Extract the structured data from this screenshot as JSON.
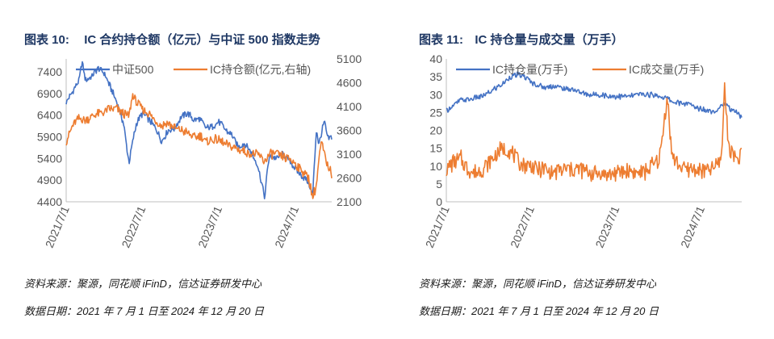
{
  "charts": [
    {
      "figure_label": "图表 10:",
      "figure_title": "IC 合约持仓额（亿元）与中证 500 指数走势",
      "source": "资料来源：聚源，同花顺 iFinD，信达证券研发中心",
      "date_note": "数据日期：2021 年 7 月 1 日至 2024 年 12 月 20 日",
      "colors": {
        "blue": "#4472c4",
        "orange": "#ed7d31"
      }
    },
    {
      "figure_label": "图表 11:",
      "figure_title": "IC 持仓量与成交量（万手）",
      "source": "资料来源：聚源，同花顺 iFinD，信达证券研发中心",
      "date_note": "数据日期：2021 年 7 月 1 日至 2024 年 12 月 20 日",
      "colors": {
        "blue": "#4472c4",
        "orange": "#ed7d31"
      }
    }
  ],
  "chart_data": [
    {
      "type": "line",
      "x_tick_labels": [
        "2021/7/1",
        "2022/7/1",
        "2023/7/1",
        "2024/7/1"
      ],
      "x_range": [
        "2021-07-01",
        "2024-12-20"
      ],
      "y_left": {
        "ticks": [
          "7400",
          "6900",
          "6400",
          "5900",
          "5400",
          "4900",
          "4400"
        ],
        "range": [
          4400,
          7700
        ]
      },
      "y_right": {
        "ticks": [
          "5100",
          "4600",
          "4100",
          "3600",
          "3100",
          "2600",
          "2100"
        ],
        "range": [
          2100,
          5100
        ]
      },
      "legend": [
        "中证500",
        "IC持仓额(亿元,右轴)"
      ],
      "legend_position": "top",
      "series": [
        {
          "name": "中证500",
          "axis": "left",
          "color": "#4472c4",
          "dates": [
            "2021-07-01",
            "2021-08-01",
            "2021-09-01",
            "2021-09-15",
            "2021-10-01",
            "2021-11-01",
            "2021-12-01",
            "2022-01-01",
            "2022-02-01",
            "2022-03-01",
            "2022-04-01",
            "2022-04-27",
            "2022-05-15",
            "2022-06-01",
            "2022-07-01",
            "2022-08-01",
            "2022-09-01",
            "2022-10-01",
            "2022-11-01",
            "2022-12-01",
            "2023-01-01",
            "2023-02-01",
            "2023-03-01",
            "2023-04-01",
            "2023-05-01",
            "2023-06-01",
            "2023-07-01",
            "2023-08-01",
            "2023-09-01",
            "2023-10-01",
            "2023-11-01",
            "2023-12-01",
            "2024-01-01",
            "2024-02-05",
            "2024-02-20",
            "2024-03-01",
            "2024-04-01",
            "2024-05-01",
            "2024-06-01",
            "2024-07-01",
            "2024-08-01",
            "2024-09-01",
            "2024-09-20",
            "2024-10-08",
            "2024-10-20",
            "2024-11-01",
            "2024-11-15",
            "2024-12-01",
            "2024-12-20"
          ],
          "values": [
            6700,
            6950,
            7200,
            7650,
            7200,
            7300,
            7500,
            7350,
            7000,
            6700,
            6200,
            5300,
            5800,
            6200,
            6450,
            6300,
            6100,
            5800,
            6050,
            6100,
            6350,
            6450,
            6300,
            6300,
            6100,
            6150,
            6250,
            6050,
            5950,
            5650,
            5750,
            5550,
            5250,
            4500,
            5300,
            5450,
            5400,
            5500,
            5350,
            5150,
            5000,
            4850,
            4550,
            6100,
            5700,
            6000,
            6250,
            5850,
            5900
          ]
        },
        {
          "name": "IC持仓额(亿元,右轴)",
          "axis": "right",
          "color": "#ed7d31",
          "dates": [
            "2021-07-01",
            "2021-08-01",
            "2021-09-01",
            "2021-10-01",
            "2021-11-01",
            "2021-12-01",
            "2022-01-01",
            "2022-02-01",
            "2022-03-01",
            "2022-04-01",
            "2022-04-27",
            "2022-05-15",
            "2022-06-01",
            "2022-07-01",
            "2022-08-01",
            "2022-09-01",
            "2022-10-01",
            "2022-11-01",
            "2022-12-01",
            "2023-01-01",
            "2023-02-01",
            "2023-03-01",
            "2023-04-01",
            "2023-05-01",
            "2023-06-01",
            "2023-07-01",
            "2023-08-01",
            "2023-09-01",
            "2023-10-01",
            "2023-11-01",
            "2023-12-01",
            "2024-01-01",
            "2024-02-05",
            "2024-03-01",
            "2024-04-01",
            "2024-05-01",
            "2024-06-01",
            "2024-07-01",
            "2024-08-01",
            "2024-09-01",
            "2024-09-20",
            "2024-10-08",
            "2024-10-20",
            "2024-11-01",
            "2024-11-15",
            "2024-12-01",
            "2024-12-20"
          ],
          "values": [
            3350,
            3700,
            3850,
            3800,
            3900,
            3950,
            4000,
            4050,
            4050,
            3950,
            3900,
            4350,
            4200,
            4050,
            3950,
            3800,
            3700,
            3750,
            3650,
            3600,
            3550,
            3450,
            3500,
            3350,
            3400,
            3400,
            3300,
            3250,
            3200,
            3150,
            3100,
            3100,
            2950,
            3100,
            3100,
            3050,
            3000,
            2900,
            2750,
            2600,
            2200,
            2450,
            3000,
            3350,
            3100,
            2850,
            2700
          ]
        }
      ]
    },
    {
      "type": "line",
      "x_tick_labels": [
        "2021/7/1",
        "2022/7/1",
        "2023/7/1",
        "2024/7/1"
      ],
      "x_range": [
        "2021-07-01",
        "2024-12-20"
      ],
      "y_left": {
        "ticks": [
          "40",
          "35",
          "30",
          "25",
          "20",
          "15",
          "10",
          "5",
          "0"
        ],
        "range": [
          0,
          40
        ]
      },
      "legend": [
        "IC持仓量(万手)",
        "IC成交量(万手)"
      ],
      "legend_position": "top",
      "series": [
        {
          "name": "IC持仓量(万手)",
          "color": "#4472c4",
          "dates": [
            "2021-07-01",
            "2021-08-01",
            "2021-09-01",
            "2021-10-01",
            "2021-11-01",
            "2021-12-01",
            "2022-01-01",
            "2022-02-01",
            "2022-03-01",
            "2022-04-01",
            "2022-05-01",
            "2022-06-01",
            "2022-07-01",
            "2022-08-01",
            "2022-09-01",
            "2022-10-01",
            "2022-11-01",
            "2022-12-01",
            "2023-01-01",
            "2023-02-01",
            "2023-03-01",
            "2023-04-01",
            "2023-05-01",
            "2023-06-01",
            "2023-07-01",
            "2023-08-01",
            "2023-09-01",
            "2023-10-01",
            "2023-11-01",
            "2023-12-01",
            "2024-01-01",
            "2024-02-01",
            "2024-03-01",
            "2024-04-01",
            "2024-05-01",
            "2024-06-01",
            "2024-07-01",
            "2024-08-01",
            "2024-09-01",
            "2024-10-01",
            "2024-11-01",
            "2024-12-01",
            "2024-12-20"
          ],
          "values": [
            25.5,
            27,
            28.5,
            28.5,
            29,
            29.5,
            30.5,
            32,
            33,
            35,
            35.5,
            35,
            33.5,
            32.5,
            32,
            32.5,
            32,
            31.5,
            31.5,
            30.5,
            30,
            30,
            30,
            29.5,
            29.5,
            29.5,
            29.5,
            30,
            30,
            30,
            29.5,
            29,
            28,
            27.5,
            27.5,
            26.5,
            26,
            25.5,
            25.5,
            27.5,
            26,
            25,
            23.5
          ]
        },
        {
          "name": "IC成交量(万手)",
          "color": "#ed7d31",
          "dates": [
            "2021-07-01",
            "2021-08-01",
            "2021-09-01",
            "2021-10-01",
            "2021-11-01",
            "2021-12-01",
            "2022-01-01",
            "2022-02-01",
            "2022-03-01",
            "2022-04-01",
            "2022-05-01",
            "2022-06-01",
            "2022-07-01",
            "2022-08-01",
            "2022-09-01",
            "2022-10-01",
            "2022-11-01",
            "2022-12-01",
            "2023-01-01",
            "2023-02-01",
            "2023-03-01",
            "2023-04-01",
            "2023-05-01",
            "2023-06-01",
            "2023-07-01",
            "2023-08-01",
            "2023-09-01",
            "2023-10-01",
            "2023-11-01",
            "2023-12-01",
            "2024-01-01",
            "2024-01-15",
            "2024-02-05",
            "2024-02-20",
            "2024-03-01",
            "2024-04-01",
            "2024-05-01",
            "2024-06-01",
            "2024-07-01",
            "2024-08-01",
            "2024-09-01",
            "2024-09-25",
            "2024-10-08",
            "2024-10-20",
            "2024-11-01",
            "2024-12-01",
            "2024-12-20"
          ],
          "values": [
            9,
            11,
            12,
            9,
            8,
            9,
            11,
            13,
            15,
            14,
            12,
            10,
            10,
            9,
            9,
            8,
            9,
            9,
            9,
            9,
            8,
            8,
            8,
            7.5,
            8,
            8.5,
            8.5,
            8,
            8.5,
            10,
            12,
            18,
            30,
            16,
            12,
            10,
            9,
            9,
            8.5,
            9,
            10,
            13,
            34,
            18,
            15,
            12,
            13
          ]
        }
      ]
    }
  ]
}
